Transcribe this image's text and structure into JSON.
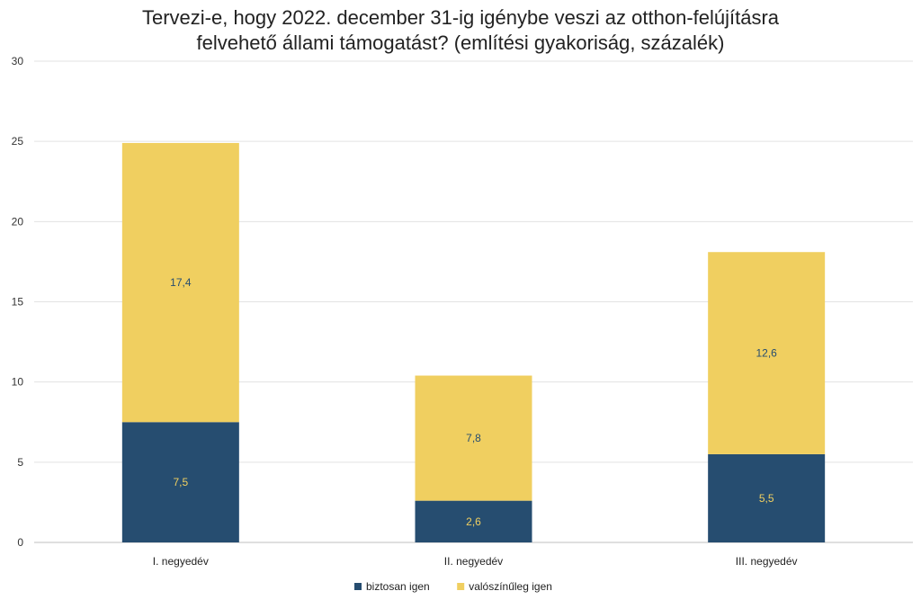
{
  "chart_data": {
    "type": "bar",
    "stacked": true,
    "title_lines": [
      "Tervezi-e, hogy 2022. december 31-ig igénybe veszi az otthon-felújításra",
      "felvehető állami támogatást? (említési gyakoriság, százalék)"
    ],
    "categories": [
      "I. negyedév",
      "II. negyedév",
      "III. negyedév"
    ],
    "series": [
      {
        "name": "biztosan igen",
        "values": [
          7.5,
          2.6,
          5.5
        ],
        "labels": [
          "7,5",
          "2,6",
          "5,5"
        ],
        "color": "#264d70",
        "label_color": "#f0cf60"
      },
      {
        "name": "valószínűleg igen",
        "values": [
          17.4,
          7.8,
          12.6
        ],
        "labels": [
          "17,4",
          "7,8",
          "12,6"
        ],
        "color": "#f0cf60",
        "label_color": "#264d70"
      }
    ],
    "ylim": [
      0,
      30
    ],
    "yticks": [
      0,
      5,
      10,
      15,
      20,
      25,
      30
    ],
    "grid": true,
    "legend_position": "bottom"
  }
}
